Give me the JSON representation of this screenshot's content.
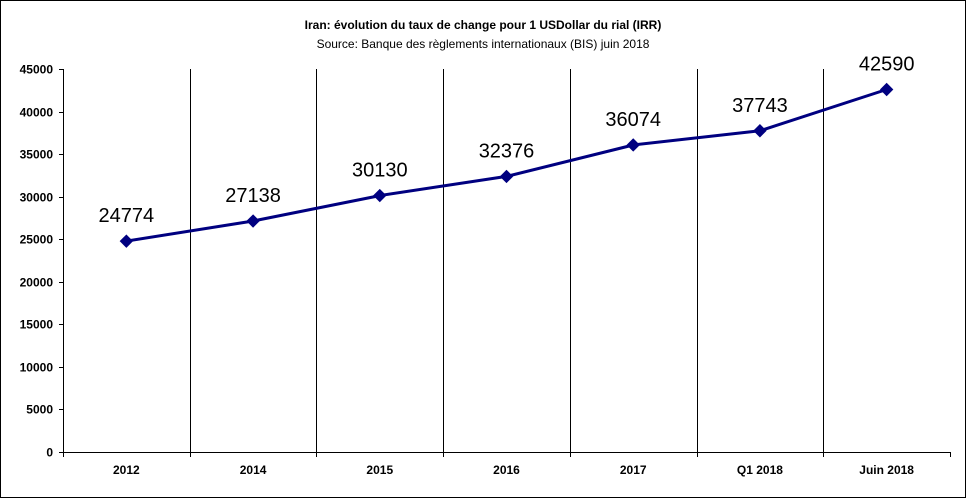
{
  "chart_data": {
    "type": "line",
    "title": "Iran: évolution du taux de change pour 1 USDollar du rial (IRR)",
    "subtitle": "Source: Banque des règlements internationaux (BIS) juin 2018",
    "categories": [
      "2012",
      "2014",
      "2015",
      "2016",
      "2017",
      "Q1 2018",
      "Juin 2018"
    ],
    "series": [
      {
        "values": [
          24774,
          27138,
          30130,
          32376,
          36074,
          37743,
          42590
        ]
      }
    ],
    "data_labels": [
      "24774",
      "27138",
      "30130",
      "32376",
      "36074",
      "37743",
      "42590"
    ],
    "y_ticks": [
      "0",
      "5000",
      "10000",
      "15000",
      "20000",
      "25000",
      "30000",
      "35000",
      "40000",
      "45000"
    ],
    "ylim": [
      0,
      45000
    ],
    "xlabel": "",
    "ylabel": "",
    "grid": "vertical",
    "legend": "none",
    "line_color": "#000080",
    "marker": "diamond"
  }
}
